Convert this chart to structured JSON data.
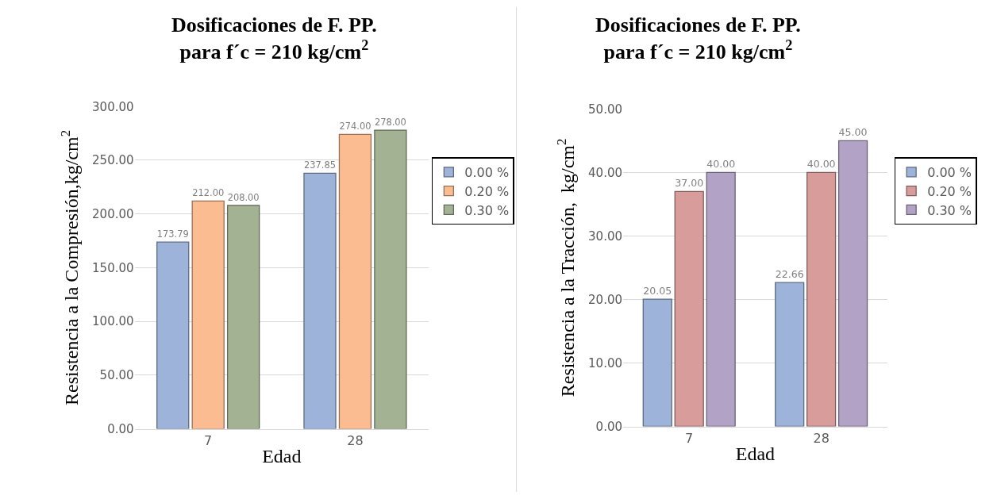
{
  "chart_data": [
    {
      "type": "bar",
      "title": "Dosificaciones de F. PP.\npara f´c = 210 kg/cm$^{2}$",
      "xlabel": "Edad",
      "ylabel": "Resistencia a la Compresión,kg/cm$^{2}$",
      "categories": [
        "7",
        "28"
      ],
      "series": [
        {
          "name": "0.00 %",
          "color": "#9db3da",
          "values": [
            173.79,
            237.85
          ],
          "value_labels": [
            "173.79",
            "237.85"
          ]
        },
        {
          "name": "0.20 %",
          "color": "#fbbc92",
          "values": [
            212,
            274
          ],
          "value_labels": [
            "212.00",
            "274.00"
          ]
        },
        {
          "name": "0.30 %",
          "color": "#a3b293",
          "values": [
            208,
            278
          ],
          "value_labels": [
            "208.00",
            "278.00"
          ]
        }
      ],
      "ylim": [
        0,
        300
      ],
      "yticks": [
        {
          "value": 0,
          "label": "0.00"
        },
        {
          "value": 50,
          "label": "50.00"
        },
        {
          "value": 100,
          "label": "100.00"
        },
        {
          "value": 150,
          "label": "150.00"
        },
        {
          "value": 200,
          "label": "200.00"
        },
        {
          "value": 250,
          "label": "250.00"
        },
        {
          "value": 300,
          "label": "300.00"
        }
      ],
      "grid": "y",
      "legend": "right"
    },
    {
      "type": "bar",
      "title": "Dosificaciones de F. PP.\npara f´c = 210 kg/cm$^{2}$",
      "xlabel": "Edad",
      "ylabel": "Resistencia a la Tracción,  kg/cm$^{2}$",
      "categories": [
        "7",
        "28"
      ],
      "series": [
        {
          "name": "0.00 %",
          "color": "#9db3da",
          "values": [
            20.05,
            22.66
          ],
          "value_labels": [
            "20.05",
            "22.66"
          ]
        },
        {
          "name": "0.20 %",
          "color": "#d89c9b",
          "values": [
            37,
            40
          ],
          "value_labels": [
            "37.00",
            "40.00"
          ]
        },
        {
          "name": "0.30 %",
          "color": "#b2a3c6",
          "values": [
            40,
            45
          ],
          "value_labels": [
            "40.00",
            "45.00"
          ]
        }
      ],
      "ylim": [
        0,
        50
      ],
      "yticks": [
        {
          "value": 0,
          "label": "0.00"
        },
        {
          "value": 10,
          "label": "10.00"
        },
        {
          "value": 20,
          "label": "20.00"
        },
        {
          "value": 30,
          "label": "30.00"
        },
        {
          "value": 40,
          "label": "40.00"
        },
        {
          "value": 50,
          "label": "50.00"
        }
      ],
      "grid": "y",
      "legend": "right"
    }
  ]
}
